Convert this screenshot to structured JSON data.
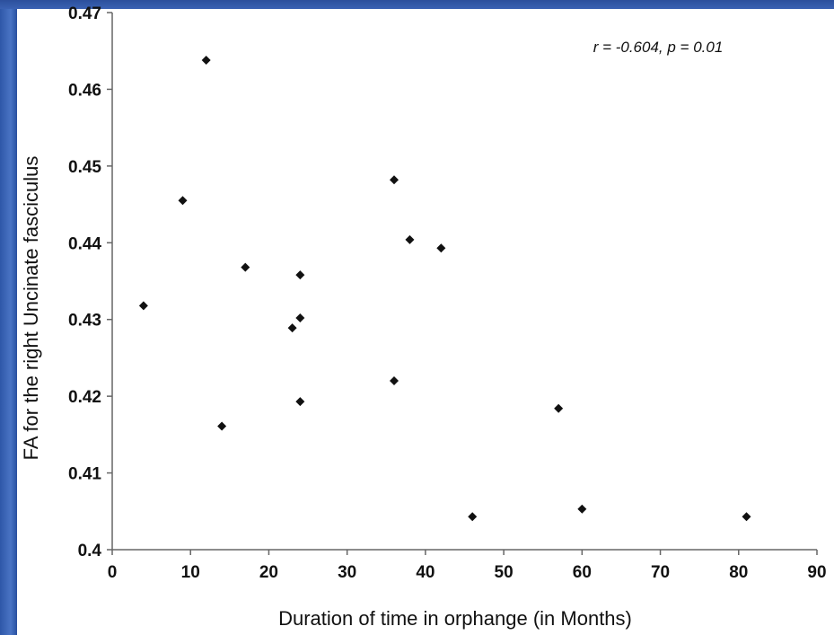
{
  "chart_data": {
    "type": "scatter",
    "xlabel": "Duration of time in orphange (in Months)",
    "ylabel": "FA for the right Uncinate fasciculus",
    "annotation": "r = -0.604, p = 0.01",
    "xlim": [
      0,
      90
    ],
    "ylim": [
      0.4,
      0.47
    ],
    "xticks": [
      "0",
      "10",
      "20",
      "30",
      "40",
      "50",
      "60",
      "70",
      "80",
      "90"
    ],
    "yticks": [
      "0.4",
      "0.41",
      "0.42",
      "0.43",
      "0.44",
      "0.45",
      "0.46",
      "0.47"
    ],
    "marker": "diamond",
    "marker_color": "#111111",
    "grid": false,
    "points": [
      {
        "x": 4,
        "y": 0.4318
      },
      {
        "x": 9,
        "y": 0.4455
      },
      {
        "x": 12,
        "y": 0.4638
      },
      {
        "x": 14,
        "y": 0.4161
      },
      {
        "x": 17,
        "y": 0.4368
      },
      {
        "x": 23,
        "y": 0.4289
      },
      {
        "x": 24,
        "y": 0.4358
      },
      {
        "x": 24,
        "y": 0.4302
      },
      {
        "x": 24,
        "y": 0.4193
      },
      {
        "x": 36,
        "y": 0.4482
      },
      {
        "x": 36,
        "y": 0.422
      },
      {
        "x": 38,
        "y": 0.4404
      },
      {
        "x": 42,
        "y": 0.4393
      },
      {
        "x": 46,
        "y": 0.4043
      },
      {
        "x": 57,
        "y": 0.4184
      },
      {
        "x": 60,
        "y": 0.4053
      },
      {
        "x": 81,
        "y": 0.4043
      }
    ]
  }
}
